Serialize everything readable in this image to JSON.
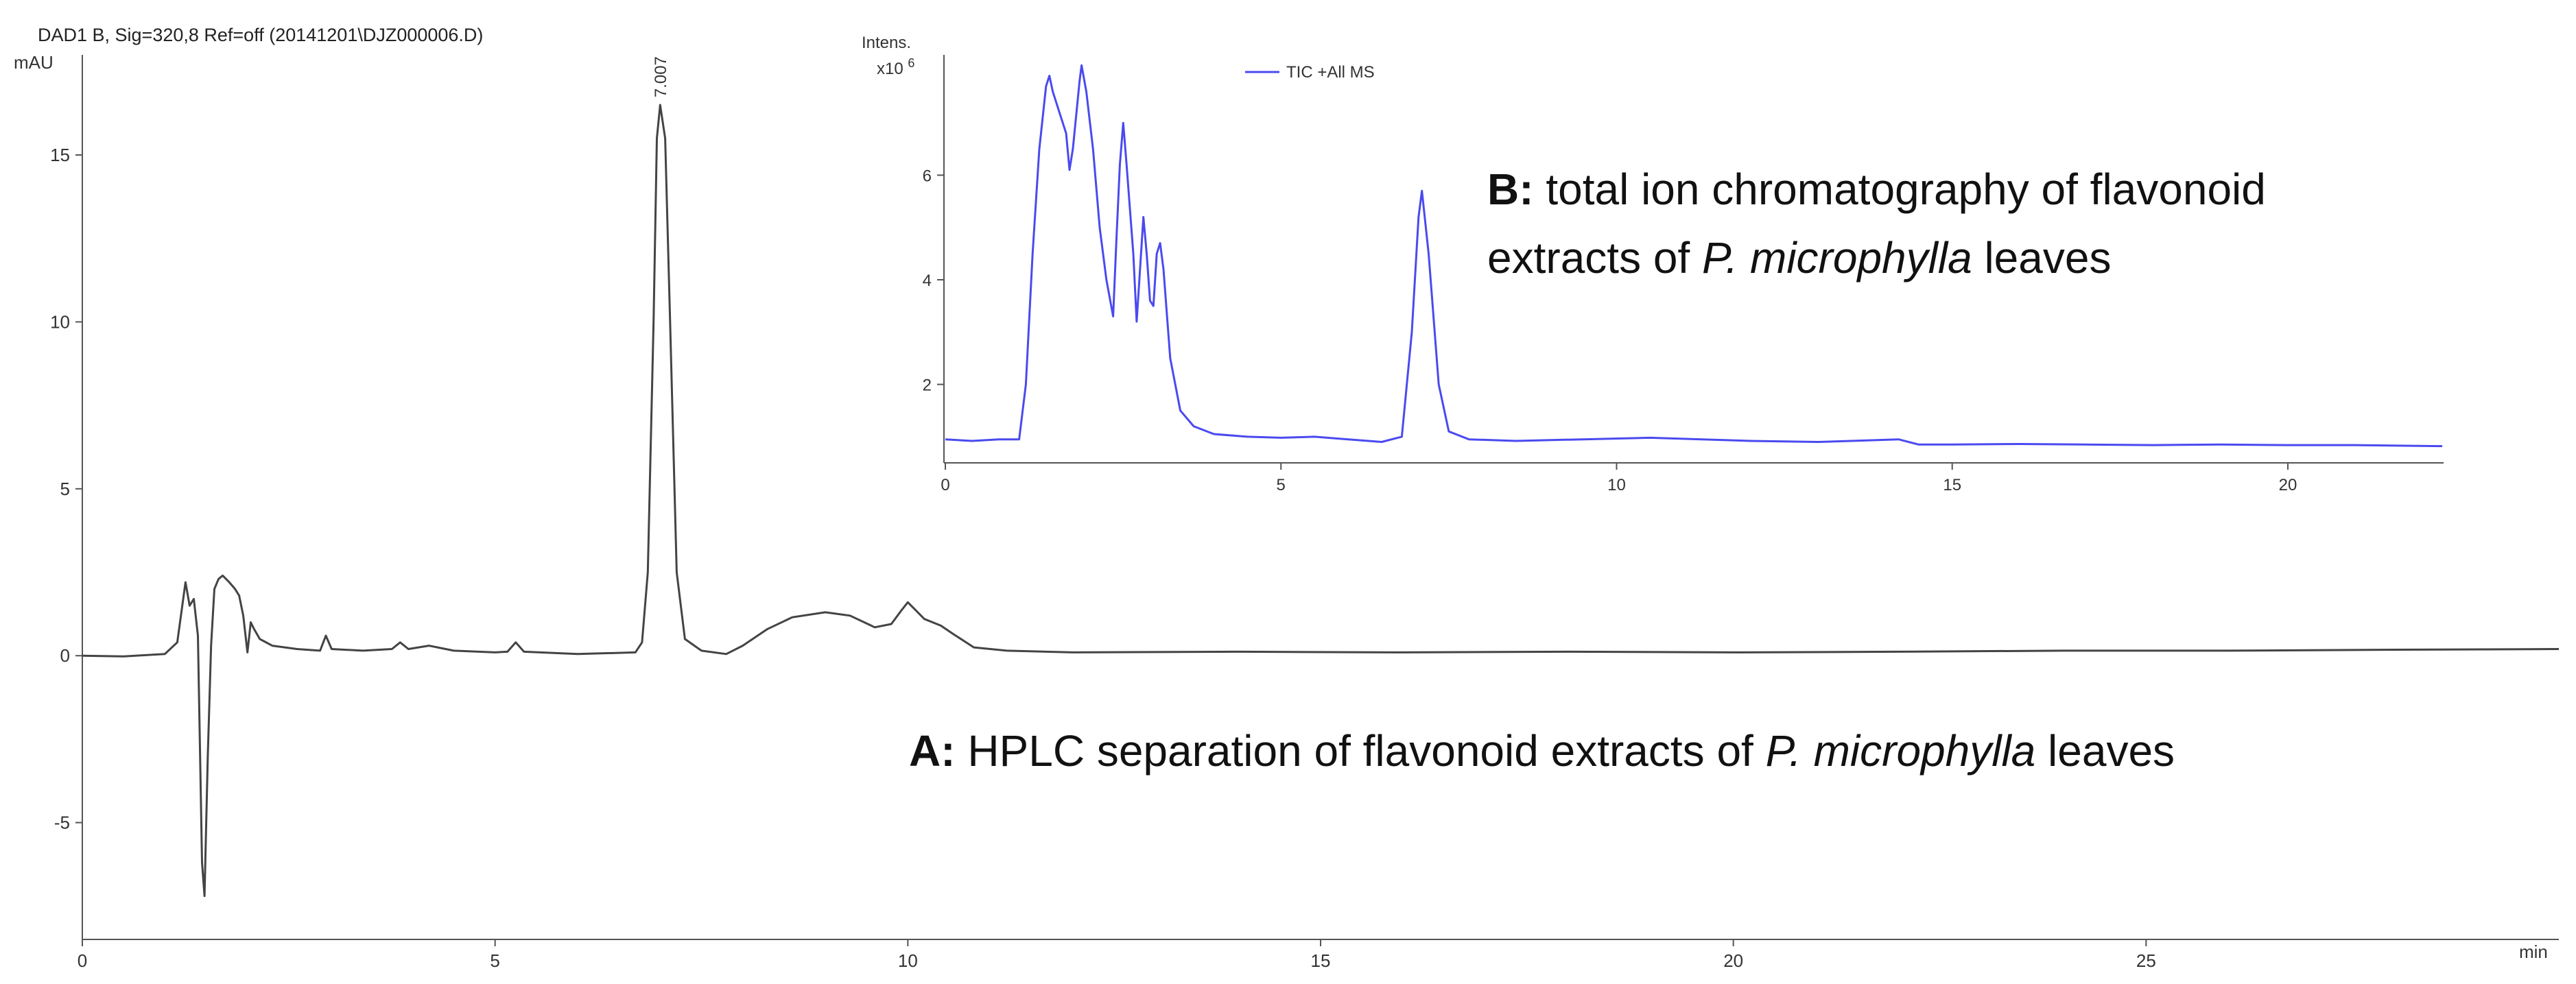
{
  "chart_data": [
    {
      "id": "A",
      "type": "line",
      "header": "DAD1 B, Sig=320,8 Ref=off (20141201\\DJZ000006.D)",
      "ylabel": "mAU",
      "xlabel": "min",
      "xlim": [
        0,
        30
      ],
      "ylim": [
        -8.5,
        18
      ],
      "x_ticks": [
        0,
        5,
        10,
        15,
        20,
        25
      ],
      "x_tick_labels": [
        "0",
        "5",
        "10",
        "15",
        "20",
        "25"
      ],
      "y_ticks": [
        -5,
        0,
        5,
        10,
        15
      ],
      "y_tick_labels": [
        "-5",
        "0",
        "5",
        "10",
        "15"
      ],
      "peak_label": {
        "x": 7.007,
        "text": "7.007"
      },
      "annotation": {
        "bold": "A:",
        "pre": " HPLC separation of flavonoid extracts of ",
        "italic": "P. microphylla",
        "post": " leaves"
      },
      "series": [
        {
          "color": "#444444",
          "points": [
            [
              0,
              0
            ],
            [
              0.5,
              -0.02
            ],
            [
              1.0,
              0.05
            ],
            [
              1.15,
              0.4
            ],
            [
              1.25,
              2.2
            ],
            [
              1.3,
              1.5
            ],
            [
              1.35,
              1.7
            ],
            [
              1.4,
              0.6
            ],
            [
              1.45,
              -6.2
            ],
            [
              1.48,
              -7.2
            ],
            [
              1.52,
              -3.0
            ],
            [
              1.56,
              0.3
            ],
            [
              1.6,
              2.0
            ],
            [
              1.65,
              2.3
            ],
            [
              1.7,
              2.4
            ],
            [
              1.78,
              2.2
            ],
            [
              1.85,
              2.0
            ],
            [
              1.9,
              1.8
            ],
            [
              1.95,
              1.2
            ],
            [
              2.0,
              0.1
            ],
            [
              2.04,
              1.0
            ],
            [
              2.08,
              0.8
            ],
            [
              2.15,
              0.5
            ],
            [
              2.3,
              0.3
            ],
            [
              2.6,
              0.2
            ],
            [
              2.88,
              0.15
            ],
            [
              2.95,
              0.6
            ],
            [
              3.02,
              0.2
            ],
            [
              3.4,
              0.15
            ],
            [
              3.75,
              0.2
            ],
            [
              3.85,
              0.4
            ],
            [
              3.95,
              0.2
            ],
            [
              4.2,
              0.3
            ],
            [
              4.5,
              0.15
            ],
            [
              5.0,
              0.1
            ],
            [
              5.15,
              0.12
            ],
            [
              5.25,
              0.4
            ],
            [
              5.35,
              0.12
            ],
            [
              6.0,
              0.05
            ],
            [
              6.7,
              0.1
            ],
            [
              6.78,
              0.4
            ],
            [
              6.85,
              2.5
            ],
            [
              6.92,
              10.0
            ],
            [
              6.96,
              15.5
            ],
            [
              7.0,
              16.5
            ],
            [
              7.06,
              15.5
            ],
            [
              7.12,
              10.0
            ],
            [
              7.2,
              2.5
            ],
            [
              7.3,
              0.5
            ],
            [
              7.5,
              0.15
            ],
            [
              7.8,
              0.05
            ],
            [
              8.0,
              0.3
            ],
            [
              8.3,
              0.8
            ],
            [
              8.6,
              1.15
            ],
            [
              9.0,
              1.3
            ],
            [
              9.3,
              1.2
            ],
            [
              9.6,
              0.85
            ],
            [
              9.8,
              0.95
            ],
            [
              9.92,
              1.35
            ],
            [
              10.0,
              1.6
            ],
            [
              10.08,
              1.4
            ],
            [
              10.2,
              1.1
            ],
            [
              10.4,
              0.9
            ],
            [
              10.55,
              0.65
            ],
            [
              10.8,
              0.25
            ],
            [
              11.2,
              0.15
            ],
            [
              12,
              0.1
            ],
            [
              14,
              0.12
            ],
            [
              16,
              0.1
            ],
            [
              18,
              0.12
            ],
            [
              20,
              0.1
            ],
            [
              22,
              0.12
            ],
            [
              24,
              0.15
            ],
            [
              26,
              0.15
            ],
            [
              28,
              0.18
            ],
            [
              30,
              0.2
            ]
          ]
        }
      ]
    },
    {
      "id": "B",
      "type": "line",
      "ylabel": "Intens.",
      "y_unit": "x10",
      "y_unit_exp": "6",
      "xlim": [
        0,
        22.3
      ],
      "ylim": [
        0.5,
        8.3
      ],
      "x_ticks": [
        0,
        5,
        10,
        15,
        20
      ],
      "x_tick_labels": [
        "0",
        "5",
        "10",
        "15",
        "20"
      ],
      "y_ticks": [
        2,
        4,
        6
      ],
      "y_tick_labels": [
        "2",
        "4",
        "6"
      ],
      "legend": {
        "label": "TIC +All MS",
        "position": "top"
      },
      "annotation": {
        "bold": "B:",
        "line1": " total ion chromatography of flavonoid",
        "line2_pre": "extracts of ",
        "italic": "P. microphylla",
        "line2_post": " leaves"
      },
      "series": [
        {
          "name": "TIC +All MS",
          "color": "#4a4af0",
          "points": [
            [
              0,
              0.95
            ],
            [
              0.4,
              0.92
            ],
            [
              0.8,
              0.95
            ],
            [
              1.1,
              0.95
            ],
            [
              1.2,
              2.0
            ],
            [
              1.3,
              4.5
            ],
            [
              1.4,
              6.5
            ],
            [
              1.5,
              7.7
            ],
            [
              1.55,
              7.9
            ],
            [
              1.6,
              7.6
            ],
            [
              1.7,
              7.2
            ],
            [
              1.8,
              6.8
            ],
            [
              1.85,
              6.1
            ],
            [
              1.9,
              6.5
            ],
            [
              2.0,
              7.8
            ],
            [
              2.03,
              8.1
            ],
            [
              2.1,
              7.6
            ],
            [
              2.2,
              6.5
            ],
            [
              2.3,
              5.0
            ],
            [
              2.4,
              4.0
            ],
            [
              2.5,
              3.3
            ],
            [
              2.55,
              4.8
            ],
            [
              2.6,
              6.2
            ],
            [
              2.65,
              7.0
            ],
            [
              2.7,
              6.2
            ],
            [
              2.8,
              4.5
            ],
            [
              2.85,
              3.2
            ],
            [
              2.9,
              4.2
            ],
            [
              2.95,
              5.2
            ],
            [
              3.0,
              4.5
            ],
            [
              3.05,
              3.6
            ],
            [
              3.1,
              3.5
            ],
            [
              3.15,
              4.5
            ],
            [
              3.2,
              4.7
            ],
            [
              3.25,
              4.2
            ],
            [
              3.35,
              2.5
            ],
            [
              3.5,
              1.5
            ],
            [
              3.7,
              1.2
            ],
            [
              4.0,
              1.05
            ],
            [
              4.5,
              1.0
            ],
            [
              5.0,
              0.98
            ],
            [
              5.5,
              1.0
            ],
            [
              6.0,
              0.95
            ],
            [
              6.5,
              0.9
            ],
            [
              6.8,
              1.0
            ],
            [
              6.95,
              3.0
            ],
            [
              7.05,
              5.2
            ],
            [
              7.1,
              5.7
            ],
            [
              7.2,
              4.5
            ],
            [
              7.35,
              2.0
            ],
            [
              7.5,
              1.1
            ],
            [
              7.8,
              0.95
            ],
            [
              8.5,
              0.92
            ],
            [
              9.5,
              0.95
            ],
            [
              10.5,
              0.98
            ],
            [
              12,
              0.92
            ],
            [
              13,
              0.9
            ],
            [
              13.5,
              0.92
            ],
            [
              14.2,
              0.95
            ],
            [
              14.5,
              0.85
            ],
            [
              15,
              0.85
            ],
            [
              16,
              0.86
            ],
            [
              17,
              0.85
            ],
            [
              18,
              0.84
            ],
            [
              19,
              0.85
            ],
            [
              20,
              0.84
            ],
            [
              21,
              0.84
            ],
            [
              22.3,
              0.82
            ]
          ]
        }
      ]
    }
  ]
}
